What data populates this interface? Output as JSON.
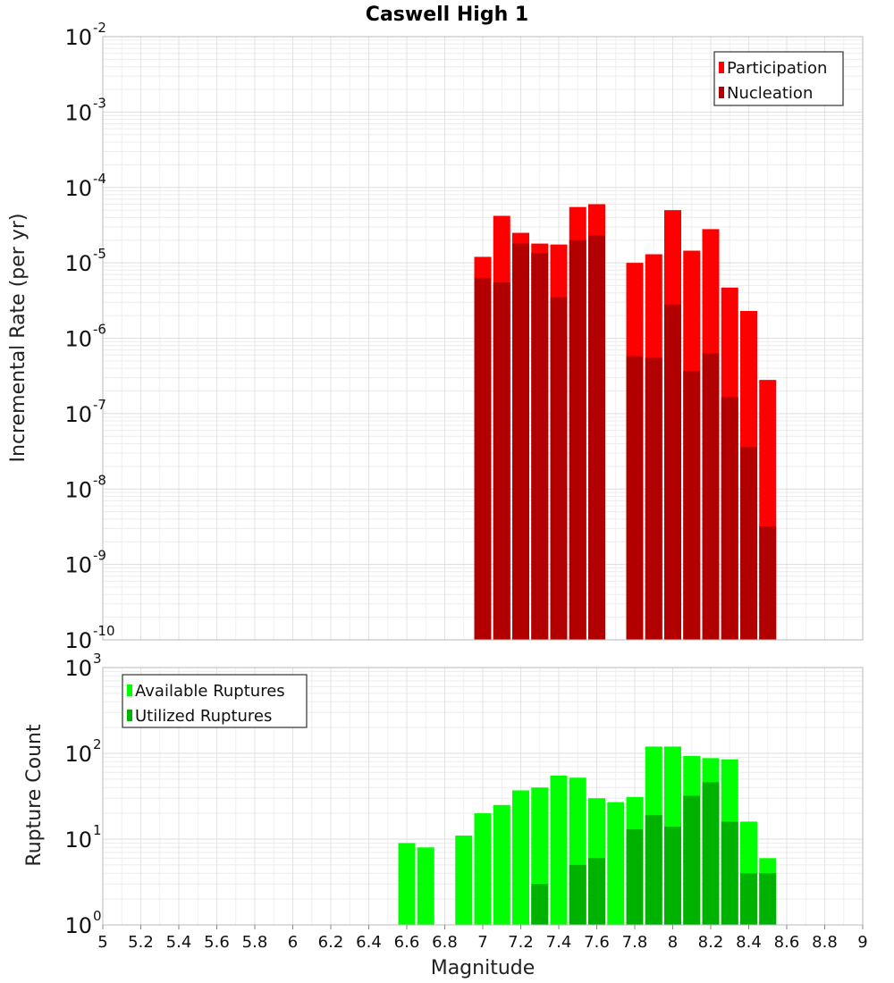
{
  "chart_data": [
    {
      "type": "bar",
      "title": "Caswell High 1",
      "ylabel": "Incremental Rate (per yr)",
      "xlabel": "",
      "yscale": "log",
      "ylim": [
        1e-10,
        0.01
      ],
      "xlim": [
        5,
        9
      ],
      "ytick_labels": [
        {
          "base": "10",
          "exp": "-10"
        },
        {
          "base": "10",
          "exp": "-9"
        },
        {
          "base": "10",
          "exp": "-8"
        },
        {
          "base": "10",
          "exp": "-7"
        },
        {
          "base": "10",
          "exp": "-6"
        },
        {
          "base": "10",
          "exp": "-5"
        },
        {
          "base": "10",
          "exp": "-4"
        },
        {
          "base": "10",
          "exp": "-3"
        },
        {
          "base": "10",
          "exp": "-2"
        }
      ],
      "grid": true,
      "legend_position": "top-right",
      "x": [
        7.0,
        7.1,
        7.2,
        7.3,
        7.4,
        7.5,
        7.6,
        7.8,
        7.9,
        8.0,
        8.1,
        8.2,
        8.3,
        8.4,
        8.5
      ],
      "series": [
        {
          "name": "Participation",
          "color": "#ff0000",
          "values": [
            1.2e-05,
            4.2e-05,
            2.5e-05,
            1.8e-05,
            1.75e-05,
            5.5e-05,
            6e-05,
            1e-05,
            1.3e-05,
            5e-05,
            1.45e-05,
            2.8e-05,
            4.7e-06,
            2.3e-06,
            2.8e-07
          ]
        },
        {
          "name": "Nucleation",
          "color": "#b20000",
          "values": [
            6.3e-06,
            5.5e-06,
            1.8e-05,
            1.35e-05,
            3.5e-06,
            2e-05,
            2.3e-05,
            5.8e-07,
            5.5e-07,
            2.8e-06,
            3.7e-07,
            6.3e-07,
            1.65e-07,
            3.6e-08,
            3.2e-09
          ]
        }
      ]
    },
    {
      "type": "bar",
      "ylabel": "Rupture Count",
      "xlabel": "Magnitude",
      "yscale": "log",
      "ylim": [
        1,
        1000
      ],
      "xlim": [
        5,
        9
      ],
      "ytick_labels": [
        {
          "base": "10",
          "exp": "0"
        },
        {
          "base": "10",
          "exp": "1"
        },
        {
          "base": "10",
          "exp": "2"
        },
        {
          "base": "10",
          "exp": "3"
        }
      ],
      "xtick_labels": [
        "5",
        "5.2",
        "5.4",
        "5.6",
        "5.8",
        "6",
        "6.2",
        "6.4",
        "6.6",
        "6.8",
        "7",
        "7.2",
        "7.4",
        "7.6",
        "7.8",
        "8",
        "8.2",
        "8.4",
        "8.6",
        "8.8",
        "9"
      ],
      "grid": true,
      "legend_position": "top-left",
      "x": [
        6.6,
        6.7,
        6.9,
        7.0,
        7.1,
        7.2,
        7.3,
        7.4,
        7.5,
        7.6,
        7.7,
        7.8,
        7.9,
        8.0,
        8.1,
        8.2,
        8.3,
        8.4,
        8.5
      ],
      "series": [
        {
          "name": "Available Ruptures",
          "color": "#00ff00",
          "values": [
            9,
            8,
            11,
            20,
            25,
            37,
            40,
            55,
            52,
            30,
            27,
            31,
            120,
            120,
            93,
            88,
            85,
            16,
            6
          ]
        },
        {
          "name": "Utilized Ruptures",
          "color": "#00b200",
          "values": [
            0,
            0,
            0,
            1,
            1,
            1,
            3,
            1,
            5,
            6,
            0,
            13,
            19,
            14,
            32,
            46,
            16,
            4,
            4
          ]
        }
      ]
    }
  ]
}
